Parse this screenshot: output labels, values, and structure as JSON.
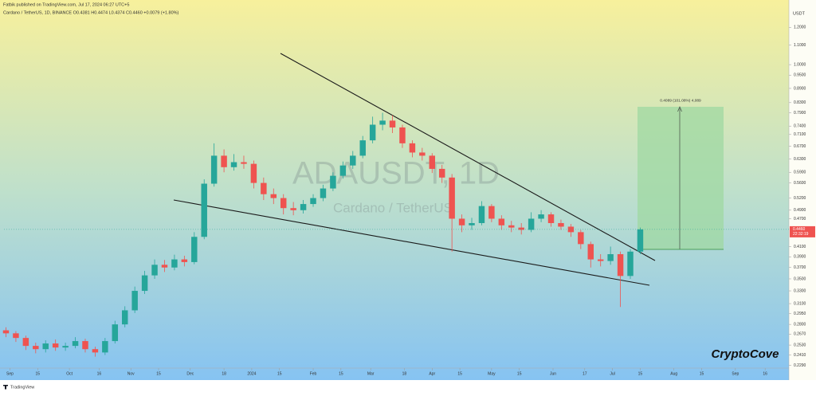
{
  "chart_data": {
    "type": "candlestick",
    "title": "ADAUSDT, 1D",
    "subtitle": "Cardano / TetherUS",
    "published": "Fatbik published on TradingView.com, Jul 17, 2024 06:27 UTC+5",
    "symbol_line": "Cardano / TetherUS, 1D, BINANCE O0.4381 H0.4474 L0.4374 C0.4460 +0.0079 (+1.80%)",
    "currency": "USDT",
    "last_price": {
      "value": 0.446,
      "label": "0.4460"
    },
    "countdown": "22:32:19",
    "target_label": "0.4089 (101.08%) 4,089",
    "watermark": "CryptoCove",
    "footer": "TradingView",
    "up_color": "#26a69a",
    "down_color": "#ef5350",
    "log_scale": true,
    "grid": false,
    "x": [
      "2023-08-30",
      "2023-09-04",
      "2023-09-09",
      "2023-09-14",
      "2023-09-19",
      "2023-09-24",
      "2023-09-29",
      "2023-10-04",
      "2023-10-09",
      "2023-10-14",
      "2023-10-19",
      "2023-10-24",
      "2023-10-29",
      "2023-11-03",
      "2023-11-08",
      "2023-11-13",
      "2023-11-18",
      "2023-11-23",
      "2023-11-28",
      "2023-12-03",
      "2023-12-08",
      "2023-12-13",
      "2023-12-18",
      "2023-12-23",
      "2023-12-28",
      "2024-01-02",
      "2024-01-07",
      "2024-01-12",
      "2024-01-17",
      "2024-01-22",
      "2024-01-27",
      "2024-02-01",
      "2024-02-06",
      "2024-02-11",
      "2024-02-16",
      "2024-02-21",
      "2024-02-26",
      "2024-03-02",
      "2024-03-07",
      "2024-03-12",
      "2024-03-17",
      "2024-03-22",
      "2024-03-27",
      "2024-04-01",
      "2024-04-06",
      "2024-04-11",
      "2024-04-16",
      "2024-04-21",
      "2024-04-26",
      "2024-05-01",
      "2024-05-06",
      "2024-05-11",
      "2024-05-16",
      "2024-05-21",
      "2024-05-26",
      "2024-05-31",
      "2024-06-05",
      "2024-06-10",
      "2024-06-15",
      "2024-06-20",
      "2024-06-25",
      "2024-06-30",
      "2024-07-05",
      "2024-07-10",
      "2024-07-15"
    ],
    "open": [
      0.272,
      0.268,
      0.262,
      0.252,
      0.248,
      0.255,
      0.25,
      0.252,
      0.258,
      0.248,
      0.244,
      0.258,
      0.28,
      0.3,
      0.33,
      0.356,
      0.375,
      0.37,
      0.385,
      0.38,
      0.43,
      0.558,
      0.64,
      0.605,
      0.62,
      0.615,
      0.56,
      0.53,
      0.52,
      0.495,
      0.49,
      0.505,
      0.52,
      0.545,
      0.58,
      0.61,
      0.64,
      0.69,
      0.745,
      0.76,
      0.735,
      0.68,
      0.65,
      0.64,
      0.6,
      0.575,
      0.47,
      0.455,
      0.46,
      0.5,
      0.47,
      0.455,
      0.45,
      0.445,
      0.47,
      0.48,
      0.46,
      0.452,
      0.44,
      0.415,
      0.385,
      0.382,
      0.395,
      0.355,
      0.4
    ],
    "high": [
      0.276,
      0.271,
      0.265,
      0.256,
      0.259,
      0.26,
      0.256,
      0.263,
      0.261,
      0.251,
      0.262,
      0.285,
      0.306,
      0.337,
      0.364,
      0.385,
      0.384,
      0.394,
      0.392,
      0.44,
      0.57,
      0.68,
      0.66,
      0.645,
      0.64,
      0.625,
      0.575,
      0.545,
      0.53,
      0.51,
      0.515,
      0.53,
      0.555,
      0.59,
      0.622,
      0.655,
      0.705,
      0.775,
      0.79,
      0.78,
      0.745,
      0.69,
      0.665,
      0.648,
      0.612,
      0.585,
      0.48,
      0.472,
      0.512,
      0.505,
      0.478,
      0.465,
      0.46,
      0.485,
      0.49,
      0.485,
      0.468,
      0.458,
      0.445,
      0.42,
      0.395,
      0.41,
      0.4,
      0.405,
      0.45
    ],
    "low": [
      0.263,
      0.257,
      0.247,
      0.243,
      0.244,
      0.246,
      0.246,
      0.249,
      0.244,
      0.239,
      0.241,
      0.255,
      0.276,
      0.296,
      0.325,
      0.35,
      0.362,
      0.365,
      0.372,
      0.376,
      0.425,
      0.55,
      0.59,
      0.595,
      0.6,
      0.545,
      0.515,
      0.505,
      0.48,
      0.478,
      0.482,
      0.498,
      0.512,
      0.538,
      0.572,
      0.6,
      0.632,
      0.68,
      0.725,
      0.715,
      0.665,
      0.635,
      0.625,
      0.588,
      0.56,
      0.4,
      0.44,
      0.445,
      0.455,
      0.462,
      0.445,
      0.44,
      0.435,
      0.44,
      0.462,
      0.452,
      0.445,
      0.43,
      0.405,
      0.37,
      0.372,
      0.375,
      0.305,
      0.35,
      0.395
    ],
    "close": [
      0.268,
      0.262,
      0.252,
      0.248,
      0.255,
      0.25,
      0.252,
      0.258,
      0.248,
      0.244,
      0.258,
      0.28,
      0.3,
      0.33,
      0.356,
      0.375,
      0.37,
      0.385,
      0.38,
      0.43,
      0.558,
      0.64,
      0.605,
      0.62,
      0.615,
      0.56,
      0.53,
      0.52,
      0.495,
      0.49,
      0.505,
      0.52,
      0.545,
      0.58,
      0.61,
      0.64,
      0.69,
      0.745,
      0.76,
      0.735,
      0.68,
      0.65,
      0.64,
      0.6,
      0.575,
      0.47,
      0.455,
      0.46,
      0.5,
      0.47,
      0.455,
      0.45,
      0.445,
      0.47,
      0.48,
      0.46,
      0.452,
      0.44,
      0.415,
      0.385,
      0.382,
      0.395,
      0.355,
      0.4,
      0.446
    ],
    "xlim": [
      "2023-08-29",
      "2024-09-28"
    ],
    "xticks": [
      {
        "value": "2023-09-01",
        "label": "Sep"
      },
      {
        "value": "2023-09-15",
        "label": "15"
      },
      {
        "value": "2023-10-01",
        "label": "Oct"
      },
      {
        "value": "2023-10-16",
        "label": "16"
      },
      {
        "value": "2023-11-01",
        "label": "Nov"
      },
      {
        "value": "2023-11-15",
        "label": "15"
      },
      {
        "value": "2023-12-01",
        "label": "Dec"
      },
      {
        "value": "2023-12-18",
        "label": "18"
      },
      {
        "value": "2024-01-01",
        "label": "2024"
      },
      {
        "value": "2024-01-15",
        "label": "15"
      },
      {
        "value": "2024-02-01",
        "label": "Feb"
      },
      {
        "value": "2024-02-15",
        "label": "15"
      },
      {
        "value": "2024-03-01",
        "label": "Mar"
      },
      {
        "value": "2024-03-18",
        "label": "18"
      },
      {
        "value": "2024-04-01",
        "label": "Apr"
      },
      {
        "value": "2024-04-15",
        "label": "15"
      },
      {
        "value": "2024-05-01",
        "label": "May"
      },
      {
        "value": "2024-05-15",
        "label": "15"
      },
      {
        "value": "2024-06-01",
        "label": "Jun"
      },
      {
        "value": "2024-06-17",
        "label": "17"
      },
      {
        "value": "2024-07-01",
        "label": "Jul"
      },
      {
        "value": "2024-07-15",
        "label": "15"
      },
      {
        "value": "2024-08-01",
        "label": "Aug"
      },
      {
        "value": "2024-08-15",
        "label": "15"
      },
      {
        "value": "2024-09-01",
        "label": "Sep"
      },
      {
        "value": "2024-09-16",
        "label": "16"
      }
    ],
    "ylim": [
      0.226,
      1.32
    ],
    "yticks": [
      {
        "value": 1.2,
        "label": "1.2000"
      },
      {
        "value": 1.1,
        "label": "1.1000"
      },
      {
        "value": 1,
        "label": "1.0000"
      },
      {
        "value": 0.95,
        "label": "0.9500"
      },
      {
        "value": 0.89,
        "label": "0.8900"
      },
      {
        "value": 0.83,
        "label": "0.8300"
      },
      {
        "value": 0.79,
        "label": "0.7900"
      },
      {
        "value": 0.74,
        "label": "0.7400"
      },
      {
        "value": 0.71,
        "label": "0.7100"
      },
      {
        "value": 0.67,
        "label": "0.6700"
      },
      {
        "value": 0.63,
        "label": "0.6300"
      },
      {
        "value": 0.59,
        "label": "0.5900"
      },
      {
        "value": 0.56,
        "label": "0.5600"
      },
      {
        "value": 0.52,
        "label": "0.5200"
      },
      {
        "value": 0.49,
        "label": "0.4900"
      },
      {
        "value": 0.47,
        "label": "0.4700"
      },
      {
        "value": 0.41,
        "label": "0.4100"
      },
      {
        "value": 0.39,
        "label": "0.3900"
      },
      {
        "value": 0.37,
        "label": "0.3700"
      },
      {
        "value": 0.35,
        "label": "0.3500"
      },
      {
        "value": 0.33,
        "label": "0.3300"
      },
      {
        "value": 0.31,
        "label": "0.3100"
      },
      {
        "value": 0.295,
        "label": "0.2950"
      },
      {
        "value": 0.28,
        "label": "0.2800"
      },
      {
        "value": 0.267,
        "label": "0.2670"
      },
      {
        "value": 0.253,
        "label": "0.2530"
      },
      {
        "value": 0.241,
        "label": "0.2410"
      },
      {
        "value": 0.229,
        "label": "0.2290"
      }
    ]
  }
}
